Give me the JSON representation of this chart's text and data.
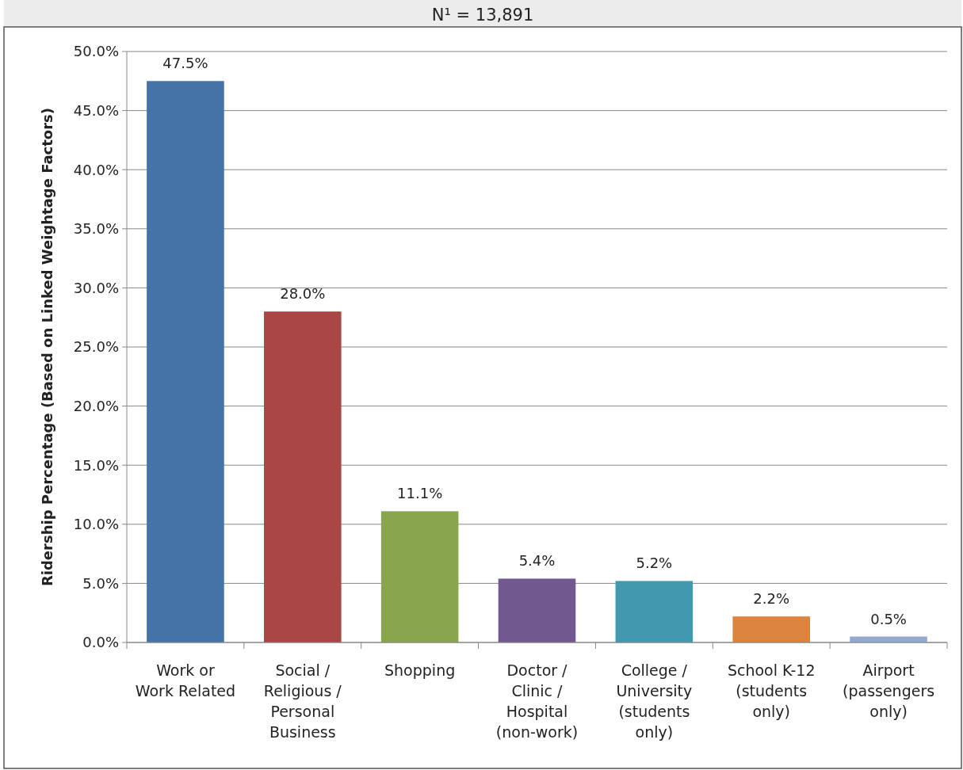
{
  "chart_data": {
    "type": "bar",
    "title": "N¹ = 13,891",
    "ylabel": "Ridership Percentage (Based on Linked Weightage Factors)",
    "categories": [
      "Work or\nWork Related",
      "Social /\nReligious /\nPersonal\nBusiness",
      "Shopping",
      "Doctor /\nClinic /\nHospital\n(non-work)",
      "College /\nUniversity\n(students\nonly)",
      "School K-12\n(students\nonly)",
      "Airport\n(passengers\nonly)"
    ],
    "values": [
      47.5,
      28.0,
      11.1,
      5.4,
      5.2,
      2.2,
      0.5
    ],
    "colors": [
      "#4572a7",
      "#aa4643",
      "#89a54e",
      "#71588f",
      "#4198af",
      "#db843d",
      "#93a9cf"
    ],
    "value_labels": [
      "47.5%",
      "28.0%",
      "11.1%",
      "5.4%",
      "5.2%",
      "2.2%",
      "0.5%"
    ],
    "ylim": [
      0,
      50
    ],
    "yticks": [
      {
        "value": 0,
        "label": "0.0%"
      },
      {
        "value": 5,
        "label": "5.0%"
      },
      {
        "value": 10,
        "label": "10.0%"
      },
      {
        "value": 15,
        "label": "15.0%"
      },
      {
        "value": 20,
        "label": "20.0%"
      },
      {
        "value": 25,
        "label": "25.0%"
      },
      {
        "value": 30,
        "label": "30.0%"
      },
      {
        "value": 35,
        "label": "35.0%"
      },
      {
        "value": 40,
        "label": "40.0%"
      },
      {
        "value": 45,
        "label": "45.0%"
      },
      {
        "value": 50,
        "label": "50.0%"
      }
    ],
    "grid": "y"
  }
}
